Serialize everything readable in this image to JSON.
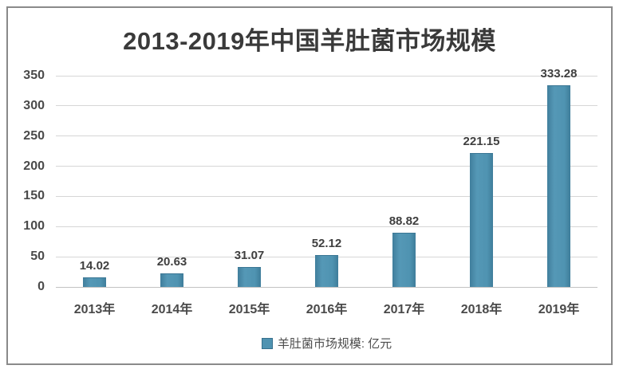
{
  "chart_data": {
    "type": "bar",
    "title": "2013-2019年中国羊肚菌市场规模",
    "categories": [
      "2013年",
      "2014年",
      "2015年",
      "2016年",
      "2017年",
      "2018年",
      "2019年"
    ],
    "values": [
      14.02,
      20.63,
      31.07,
      52.12,
      88.82,
      221.15,
      333.28
    ],
    "value_labels": [
      "14.02",
      "20.63",
      "31.07",
      "52.12",
      "88.82",
      "221.15",
      "333.28"
    ],
    "series_name": "羊肚菌市场规模",
    "legend_label": "羊肚菌市场规模: 亿元",
    "legend_position": "bottom",
    "xlabel": "",
    "ylabel": "",
    "ylim": [
      0,
      350
    ],
    "yticks": [
      0,
      50,
      100,
      150,
      200,
      250,
      300,
      350
    ],
    "grid": true,
    "colors": {
      "bar": "#4f93b1",
      "bar_border": "#3a7694",
      "gridline": "#d6d6d6",
      "frame_border": "#8a8a8a",
      "title_text": "#3a3a3a",
      "axis_text": "#4a4a4a",
      "value_label_text": "#3f3f3f"
    }
  }
}
